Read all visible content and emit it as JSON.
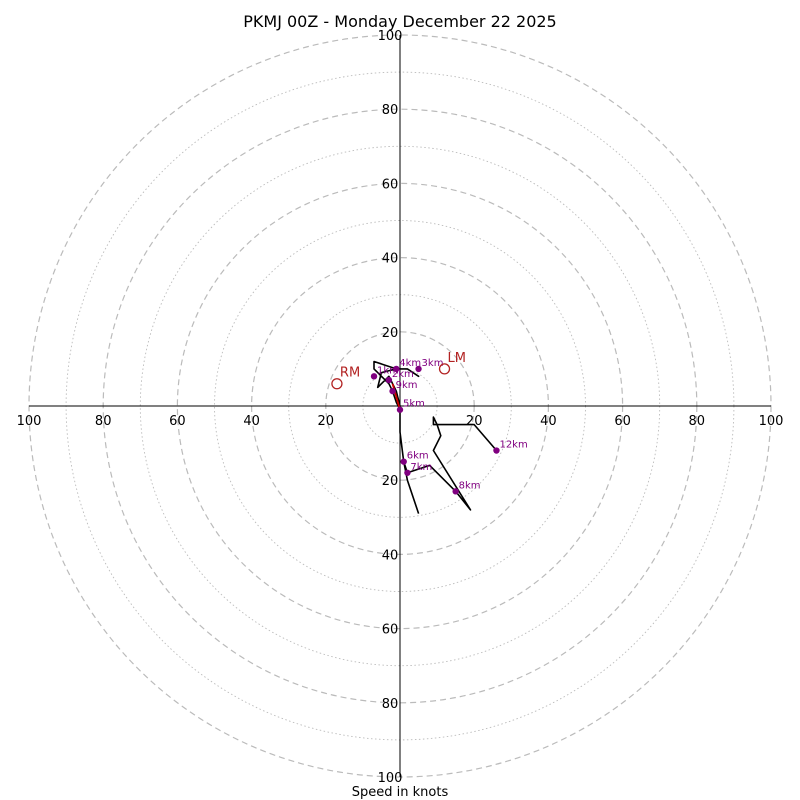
{
  "chart_data": {
    "type": "hodograph",
    "title": "PKMJ 00Z - Monday December 22 2025",
    "xlabel": "Speed in knots",
    "rings": [
      10,
      20,
      30,
      40,
      50,
      60,
      70,
      80,
      90,
      100
    ],
    "labeled_rings": [
      20,
      40,
      60,
      80,
      100
    ],
    "tick_labels": {
      "top": [
        "20",
        "40",
        "60",
        "80",
        "100"
      ],
      "bottom": [
        "20",
        "40",
        "60",
        "80",
        "100"
      ],
      "left": [
        "20",
        "40",
        "60",
        "80",
        "100"
      ],
      "right": [
        "20",
        "40",
        "60",
        "80",
        "100"
      ]
    },
    "range": [
      -100,
      100
    ],
    "trace": [
      [
        5,
        -29
      ],
      [
        2,
        -20
      ],
      [
        1,
        -15
      ],
      [
        0,
        -7
      ],
      [
        0,
        -1
      ],
      [
        -1,
        1
      ],
      [
        -2,
        4
      ],
      [
        -3,
        6
      ],
      [
        -6,
        9
      ],
      [
        -7,
        10
      ],
      [
        -7,
        12
      ],
      [
        -4,
        11
      ],
      [
        -1,
        10
      ],
      [
        2,
        10
      ],
      [
        5,
        8
      ],
      [
        2,
        10
      ],
      [
        -1,
        10
      ],
      [
        -5,
        9
      ],
      [
        -6,
        5
      ],
      [
        -3,
        8
      ],
      [
        -2,
        6
      ],
      [
        -1,
        4
      ],
      [
        0,
        0
      ],
      [
        0,
        -7
      ],
      [
        1,
        -15
      ],
      [
        2,
        -18
      ],
      [
        8,
        -16
      ],
      [
        15,
        -23
      ],
      [
        19,
        -28
      ],
      [
        9,
        -12
      ],
      [
        11,
        -8
      ],
      [
        10,
        -5
      ],
      [
        9,
        -3
      ],
      [
        9,
        -5
      ],
      [
        18,
        -5
      ],
      [
        20,
        -5
      ],
      [
        26,
        -12
      ]
    ],
    "shear_vector": {
      "from": [
        0,
        -1
      ],
      "to": [
        -2,
        6
      ],
      "color": "#cc0000"
    },
    "height_points": [
      {
        "label": "1km",
        "u": -7,
        "v": 8
      },
      {
        "label": "2km",
        "u": -3,
        "v": 7
      },
      {
        "label": "3km",
        "u": 5,
        "v": 10
      },
      {
        "label": "4km",
        "u": -1,
        "v": 10
      },
      {
        "label": "5km",
        "u": 0,
        "v": -1
      },
      {
        "label": "6km",
        "u": 1,
        "v": -15
      },
      {
        "label": "7km",
        "u": 2,
        "v": -18
      },
      {
        "label": "8km",
        "u": 15,
        "v": -23
      },
      {
        "label": "9km",
        "u": -2,
        "v": 4
      },
      {
        "label": "12km",
        "u": 26,
        "v": -12
      }
    ],
    "storm_motion": [
      {
        "label": "RM",
        "u": -17,
        "v": 6
      },
      {
        "label": "LM",
        "u": 12,
        "v": 10
      }
    ],
    "colors": {
      "trace": "#000000",
      "height_point": "#800080",
      "storm_motion": "#b22222",
      "grid": "#bbbbbb",
      "axis": "#000000"
    }
  }
}
